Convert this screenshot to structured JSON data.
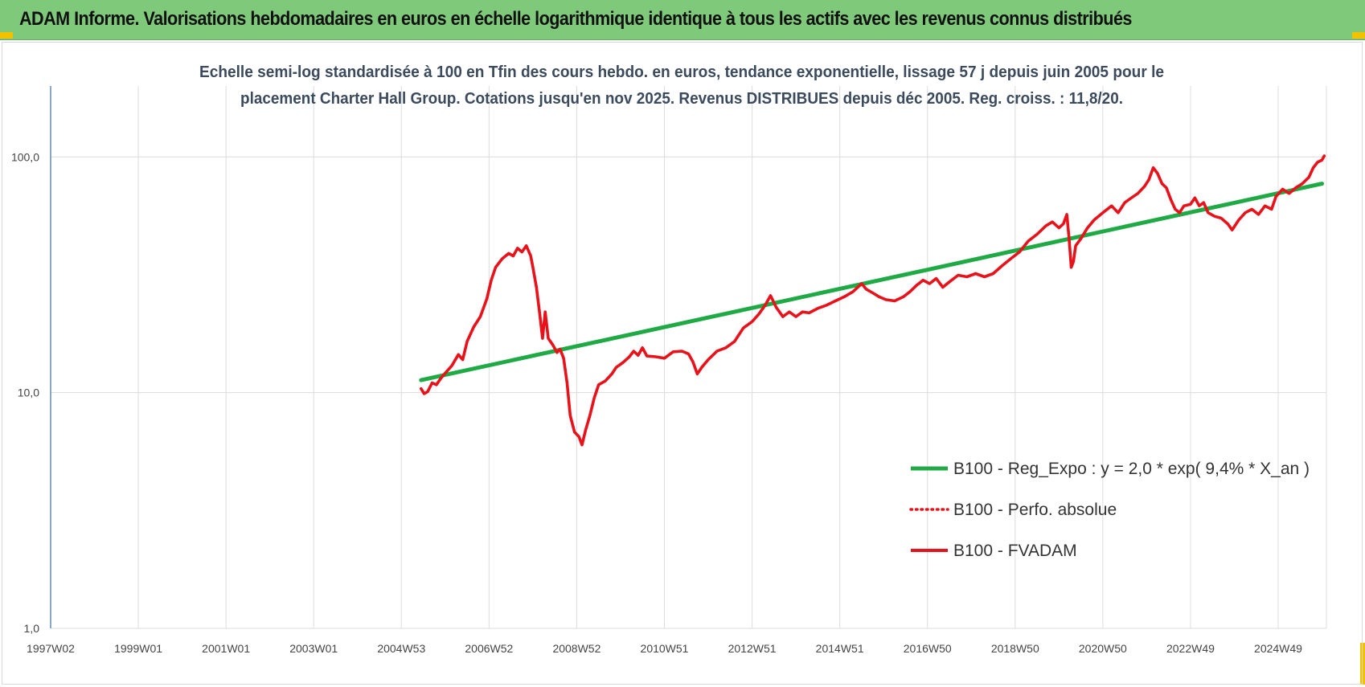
{
  "header": {
    "title": "ADAM Informe. Valorisations hebdomadaires en euros en échelle logarithmique identique à tous les actifs avec les revenus connus distribués"
  },
  "colors": {
    "header_bg": "#7fc97a",
    "corner_accent": "#f2c200",
    "trend_line": "#1faa45",
    "perf_line": "#e8121a",
    "fvadam_line": "#e8121a",
    "grid": "#dcdcdc",
    "y_axis": "#3a6ea5"
  },
  "chart_data": {
    "type": "line",
    "title_lines": [
      "Echelle semi-log standardisée à 100 en Tfin des cours hebdo. en euros, tendance exponentielle, lissage 57 j depuis juin 2005 pour le",
      "placement Charter Hall Group. Cotations jusqu'en nov 2025. Revenus DISTRIBUES depuis déc 2005.  Reg. croiss. : 11,8/20."
    ],
    "y_scale": "log",
    "ylim": [
      1,
      200
    ],
    "y_ticks": [
      {
        "value": 100,
        "label": "100,0"
      },
      {
        "value": 10,
        "label": "10,0"
      },
      {
        "value": 1,
        "label": "1,0"
      }
    ],
    "xlim": [
      1997.0,
      2026.1
    ],
    "x_ticks": [
      {
        "value": 1997.0,
        "label": "1997W02"
      },
      {
        "value": 1999.0,
        "label": "1999W01"
      },
      {
        "value": 2001.0,
        "label": "2001W01"
      },
      {
        "value": 2003.0,
        "label": "2003W01"
      },
      {
        "value": 2005.0,
        "label": "2004W53"
      },
      {
        "value": 2007.0,
        "label": "2006W52"
      },
      {
        "value": 2009.0,
        "label": "2008W52"
      },
      {
        "value": 2011.0,
        "label": "2010W51"
      },
      {
        "value": 2013.0,
        "label": "2012W51"
      },
      {
        "value": 2015.0,
        "label": "2014W51"
      },
      {
        "value": 2017.0,
        "label": "2016W50"
      },
      {
        "value": 2019.0,
        "label": "2018W50"
      },
      {
        "value": 2021.0,
        "label": "2020W50"
      },
      {
        "value": 2023.0,
        "label": "2022W49"
      },
      {
        "value": 2025.0,
        "label": "2024W49"
      }
    ],
    "grid": {
      "vertical": true,
      "horizontal": true
    },
    "legend_position": "bottom-right",
    "series": [
      {
        "name": "B100 - Reg_Expo : y = 2,0 * exp( 9,4% *  X_an )",
        "style": "solid-thick",
        "color": "#1faa45",
        "points": [
          [
            2005.45,
            11.3
          ],
          [
            2026.0,
            77.0
          ]
        ]
      },
      {
        "name": "B100 - Perfo. absolue",
        "style": "dotted",
        "color": "#e8121a",
        "points": []
      },
      {
        "name": "B100 - FVADAM",
        "style": "solid",
        "color": "#e8121a",
        "points": [
          [
            2005.45,
            10.4
          ],
          [
            2005.52,
            9.9
          ],
          [
            2005.6,
            10.1
          ],
          [
            2005.7,
            11.0
          ],
          [
            2005.8,
            10.8
          ],
          [
            2005.9,
            11.5
          ],
          [
            2006.0,
            12.1
          ],
          [
            2006.15,
            13.0
          ],
          [
            2006.3,
            14.5
          ],
          [
            2006.4,
            13.8
          ],
          [
            2006.5,
            16.5
          ],
          [
            2006.65,
            19.0
          ],
          [
            2006.8,
            21.0
          ],
          [
            2006.95,
            25.0
          ],
          [
            2007.05,
            30.0
          ],
          [
            2007.15,
            34.0
          ],
          [
            2007.3,
            37.0
          ],
          [
            2007.45,
            39.0
          ],
          [
            2007.55,
            38.0
          ],
          [
            2007.65,
            41.0
          ],
          [
            2007.75,
            39.5
          ],
          [
            2007.85,
            42.0
          ],
          [
            2007.95,
            38.0
          ],
          [
            2008.0,
            34.0
          ],
          [
            2008.08,
            28.0
          ],
          [
            2008.15,
            22.0
          ],
          [
            2008.22,
            17.0
          ],
          [
            2008.28,
            22.0
          ],
          [
            2008.35,
            17.0
          ],
          [
            2008.45,
            16.0
          ],
          [
            2008.55,
            14.8
          ],
          [
            2008.62,
            15.3
          ],
          [
            2008.7,
            14.0
          ],
          [
            2008.78,
            11.0
          ],
          [
            2008.85,
            8.0
          ],
          [
            2008.95,
            6.8
          ],
          [
            2009.05,
            6.5
          ],
          [
            2009.12,
            6.0
          ],
          [
            2009.2,
            6.9
          ],
          [
            2009.3,
            8.0
          ],
          [
            2009.4,
            9.5
          ],
          [
            2009.5,
            10.8
          ],
          [
            2009.65,
            11.2
          ],
          [
            2009.8,
            12.0
          ],
          [
            2009.9,
            12.8
          ],
          [
            2010.05,
            13.4
          ],
          [
            2010.2,
            14.2
          ],
          [
            2010.3,
            15.0
          ],
          [
            2010.4,
            14.4
          ],
          [
            2010.5,
            15.5
          ],
          [
            2010.6,
            14.3
          ],
          [
            2010.8,
            14.2
          ],
          [
            2011.0,
            14.0
          ],
          [
            2011.2,
            14.9
          ],
          [
            2011.4,
            15.0
          ],
          [
            2011.55,
            14.6
          ],
          [
            2011.65,
            13.5
          ],
          [
            2011.75,
            12.0
          ],
          [
            2011.85,
            12.8
          ],
          [
            2012.0,
            13.8
          ],
          [
            2012.2,
            15.0
          ],
          [
            2012.4,
            15.5
          ],
          [
            2012.6,
            16.5
          ],
          [
            2012.8,
            18.8
          ],
          [
            2013.0,
            20.0
          ],
          [
            2013.15,
            21.5
          ],
          [
            2013.3,
            23.5
          ],
          [
            2013.42,
            25.8
          ],
          [
            2013.55,
            23.0
          ],
          [
            2013.7,
            21.0
          ],
          [
            2013.85,
            22.0
          ],
          [
            2014.0,
            21.0
          ],
          [
            2014.15,
            22.0
          ],
          [
            2014.3,
            21.8
          ],
          [
            2014.5,
            22.8
          ],
          [
            2014.7,
            23.5
          ],
          [
            2014.9,
            24.5
          ],
          [
            2015.1,
            25.5
          ],
          [
            2015.3,
            26.8
          ],
          [
            2015.5,
            29.0
          ],
          [
            2015.6,
            27.5
          ],
          [
            2015.75,
            26.5
          ],
          [
            2015.9,
            25.5
          ],
          [
            2016.05,
            24.8
          ],
          [
            2016.25,
            24.5
          ],
          [
            2016.45,
            25.5
          ],
          [
            2016.6,
            26.8
          ],
          [
            2016.75,
            28.5
          ],
          [
            2016.9,
            30.0
          ],
          [
            2017.05,
            29.0
          ],
          [
            2017.2,
            30.5
          ],
          [
            2017.35,
            28.0
          ],
          [
            2017.5,
            29.5
          ],
          [
            2017.7,
            31.5
          ],
          [
            2017.9,
            31.0
          ],
          [
            2018.1,
            32.0
          ],
          [
            2018.3,
            31.0
          ],
          [
            2018.5,
            32.0
          ],
          [
            2018.7,
            34.5
          ],
          [
            2018.9,
            37.0
          ],
          [
            2019.1,
            39.5
          ],
          [
            2019.3,
            44.0
          ],
          [
            2019.5,
            47.0
          ],
          [
            2019.7,
            51.0
          ],
          [
            2019.85,
            53.0
          ],
          [
            2020.0,
            50.0
          ],
          [
            2020.1,
            52.0
          ],
          [
            2020.18,
            57.0
          ],
          [
            2020.23,
            45.0
          ],
          [
            2020.28,
            34.0
          ],
          [
            2020.33,
            36.0
          ],
          [
            2020.38,
            42.0
          ],
          [
            2020.5,
            45.0
          ],
          [
            2020.65,
            50.0
          ],
          [
            2020.8,
            54.0
          ],
          [
            2021.0,
            58.0
          ],
          [
            2021.2,
            62.0
          ],
          [
            2021.35,
            58.0
          ],
          [
            2021.5,
            64.0
          ],
          [
            2021.65,
            67.0
          ],
          [
            2021.8,
            70.0
          ],
          [
            2021.95,
            75.0
          ],
          [
            2022.05,
            80.0
          ],
          [
            2022.15,
            90.0
          ],
          [
            2022.25,
            85.0
          ],
          [
            2022.35,
            77.0
          ],
          [
            2022.45,
            74.0
          ],
          [
            2022.55,
            66.0
          ],
          [
            2022.65,
            60.0
          ],
          [
            2022.75,
            58.0
          ],
          [
            2022.85,
            62.0
          ],
          [
            2023.0,
            63.0
          ],
          [
            2023.1,
            67.0
          ],
          [
            2023.2,
            62.0
          ],
          [
            2023.3,
            64.0
          ],
          [
            2023.4,
            58.0
          ],
          [
            2023.55,
            56.0
          ],
          [
            2023.7,
            55.0
          ],
          [
            2023.85,
            52.0
          ],
          [
            2023.95,
            49.0
          ],
          [
            2024.1,
            54.0
          ],
          [
            2024.25,
            58.0
          ],
          [
            2024.4,
            60.0
          ],
          [
            2024.55,
            57.0
          ],
          [
            2024.7,
            62.0
          ],
          [
            2024.85,
            60.0
          ],
          [
            2024.95,
            68.0
          ],
          [
            2025.1,
            73.0
          ],
          [
            2025.25,
            70.0
          ],
          [
            2025.4,
            74.0
          ],
          [
            2025.55,
            77.0
          ],
          [
            2025.7,
            82.0
          ],
          [
            2025.8,
            90.0
          ],
          [
            2025.9,
            95.0
          ],
          [
            2026.0,
            97.0
          ],
          [
            2026.05,
            101.0
          ]
        ]
      }
    ]
  }
}
